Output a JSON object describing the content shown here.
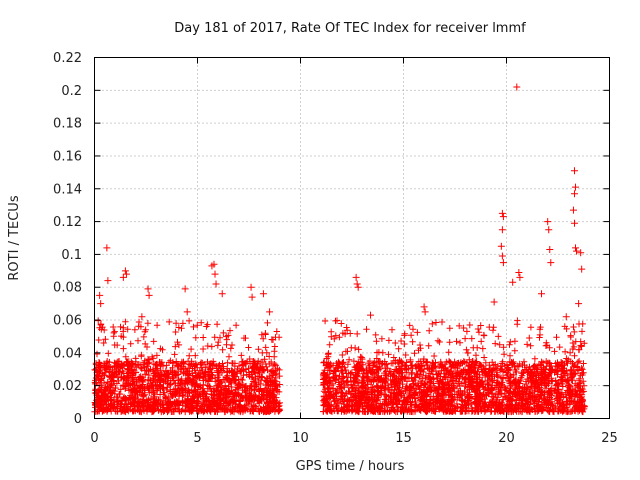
{
  "chart_data": {
    "type": "scatter",
    "title": "Day 181 of 2017, Rate Of TEC Index for receiver lmmf",
    "xlabel": "GPS time / hours",
    "ylabel": "ROTI / TECUs",
    "xlim": [
      0,
      25
    ],
    "ylim": [
      0,
      0.22
    ],
    "xticks": [
      "0",
      "5",
      "10",
      "15",
      "20",
      "25"
    ],
    "yticks": [
      "0",
      "0.02",
      "0.04",
      "0.06",
      "0.08",
      "0.1",
      "0.12",
      "0.14",
      "0.16",
      "0.18",
      "0.2",
      "0.22"
    ],
    "grid": true,
    "marker": "plus",
    "color": "#ff0000",
    "series": [
      {
        "name": "ROTI",
        "segments": [
          {
            "x_range": [
              0.0,
              9.0
            ],
            "typical_range": [
              0.004,
              0.035
            ]
          },
          {
            "x_range": [
              11.1,
              23.8
            ],
            "typical_range": [
              0.004,
              0.035
            ]
          }
        ],
        "points": [
          {
            "x": 0.25,
            "y": 0.075
          },
          {
            "x": 0.3,
            "y": 0.07
          },
          {
            "x": 0.6,
            "y": 0.104
          },
          {
            "x": 0.65,
            "y": 0.084
          },
          {
            "x": 1.4,
            "y": 0.086
          },
          {
            "x": 1.5,
            "y": 0.09
          },
          {
            "x": 1.55,
            "y": 0.088
          },
          {
            "x": 2.3,
            "y": 0.062
          },
          {
            "x": 2.6,
            "y": 0.079
          },
          {
            "x": 2.65,
            "y": 0.075
          },
          {
            "x": 4.4,
            "y": 0.079
          },
          {
            "x": 4.5,
            "y": 0.065
          },
          {
            "x": 5.7,
            "y": 0.093
          },
          {
            "x": 5.8,
            "y": 0.094
          },
          {
            "x": 5.85,
            "y": 0.088
          },
          {
            "x": 5.9,
            "y": 0.082
          },
          {
            "x": 6.2,
            "y": 0.076
          },
          {
            "x": 7.6,
            "y": 0.08
          },
          {
            "x": 7.65,
            "y": 0.074
          },
          {
            "x": 8.2,
            "y": 0.076
          },
          {
            "x": 8.5,
            "y": 0.065
          },
          {
            "x": 12.7,
            "y": 0.086
          },
          {
            "x": 12.75,
            "y": 0.082
          },
          {
            "x": 12.8,
            "y": 0.08
          },
          {
            "x": 13.4,
            "y": 0.063
          },
          {
            "x": 16.0,
            "y": 0.068
          },
          {
            "x": 16.05,
            "y": 0.065
          },
          {
            "x": 19.4,
            "y": 0.071
          },
          {
            "x": 19.8,
            "y": 0.125
          },
          {
            "x": 19.85,
            "y": 0.123
          },
          {
            "x": 19.8,
            "y": 0.115
          },
          {
            "x": 19.75,
            "y": 0.105
          },
          {
            "x": 19.8,
            "y": 0.099
          },
          {
            "x": 19.85,
            "y": 0.095
          },
          {
            "x": 20.3,
            "y": 0.083
          },
          {
            "x": 20.5,
            "y": 0.202
          },
          {
            "x": 20.6,
            "y": 0.089
          },
          {
            "x": 20.65,
            "y": 0.086
          },
          {
            "x": 21.7,
            "y": 0.076
          },
          {
            "x": 22.0,
            "y": 0.12
          },
          {
            "x": 22.05,
            "y": 0.115
          },
          {
            "x": 22.1,
            "y": 0.103
          },
          {
            "x": 22.15,
            "y": 0.095
          },
          {
            "x": 23.3,
            "y": 0.151
          },
          {
            "x": 23.35,
            "y": 0.141
          },
          {
            "x": 23.3,
            "y": 0.137
          },
          {
            "x": 23.25,
            "y": 0.127
          },
          {
            "x": 23.3,
            "y": 0.119
          },
          {
            "x": 23.35,
            "y": 0.104
          },
          {
            "x": 23.4,
            "y": 0.102
          },
          {
            "x": 23.6,
            "y": 0.101
          },
          {
            "x": 23.65,
            "y": 0.091
          },
          {
            "x": 23.5,
            "y": 0.07
          },
          {
            "x": 22.9,
            "y": 0.062
          }
        ]
      }
    ]
  }
}
